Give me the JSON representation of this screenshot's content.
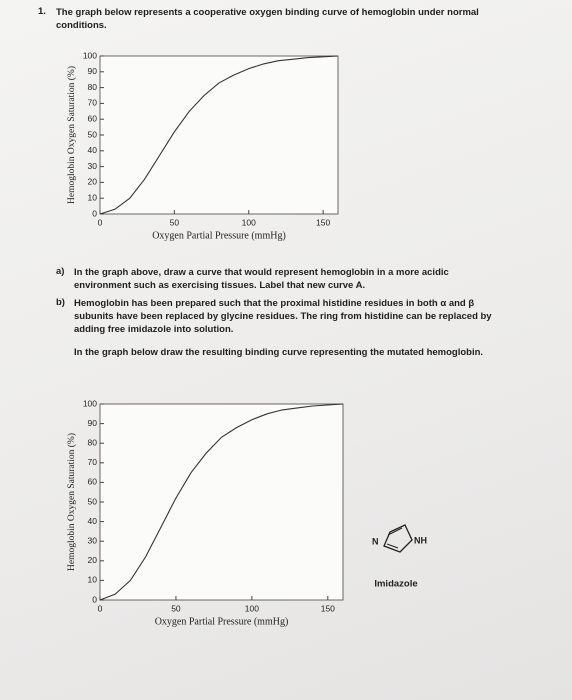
{
  "question": {
    "number": "1.",
    "text": "The graph below represents a cooperative oxygen binding curve of hemoglobin under normal conditions."
  },
  "parts": [
    {
      "label": "a)",
      "text": "In the graph above, draw a curve that would represent hemoglobin in a more acidic environment such as exercising tissues. Label that new curve A."
    },
    {
      "label": "b)",
      "text": "Hemoglobin has been prepared such that the proximal histidine residues in both α and β subunits have been replaced by glycine residues. The ring from histidine can be replaced by adding free imidazole into solution."
    }
  ],
  "instruction": "In the graph below draw the resulting binding curve representing the mutated hemoglobin.",
  "imidazole": {
    "n_label": "N",
    "nh_label": "NH",
    "name": "Imidazole"
  },
  "chart_data": [
    {
      "type": "line",
      "xlabel": "Oxygen Partial Pressure (mmHg)",
      "ylabel": "Hemoglobin Oxygen Saturation (%)",
      "x": [
        0,
        10,
        20,
        30,
        40,
        50,
        60,
        70,
        80,
        90,
        100,
        110,
        120,
        130,
        140,
        150,
        160
      ],
      "values": [
        0,
        3,
        10,
        22,
        37,
        52,
        65,
        75,
        83,
        88,
        92,
        95,
        97,
        98,
        99,
        99.5,
        100
      ],
      "color": "#333333",
      "xlim": [
        0,
        160
      ],
      "ylim": [
        0,
        100
      ],
      "xticks": [
        0,
        50,
        100,
        150
      ],
      "yticks": [
        0,
        10,
        20,
        30,
        40,
        50,
        60,
        70,
        80,
        90,
        100
      ]
    },
    {
      "type": "line",
      "xlabel": "Oxygen Partial Pressure (mmHg)",
      "ylabel": "Hemoglobin Oxygen Saturation (%)",
      "x": [
        0,
        10,
        20,
        30,
        40,
        50,
        60,
        70,
        80,
        90,
        100,
        110,
        120,
        130,
        140,
        150,
        160
      ],
      "values": [
        0,
        3,
        10,
        22,
        37,
        52,
        65,
        75,
        83,
        88,
        92,
        95,
        97,
        98,
        99,
        99.5,
        100
      ],
      "color": "#333333",
      "xlim": [
        0,
        160
      ],
      "ylim": [
        0,
        100
      ],
      "xticks": [
        0,
        50,
        100,
        150
      ],
      "yticks": [
        0,
        10,
        20,
        30,
        40,
        50,
        60,
        70,
        80,
        90,
        100
      ]
    }
  ]
}
